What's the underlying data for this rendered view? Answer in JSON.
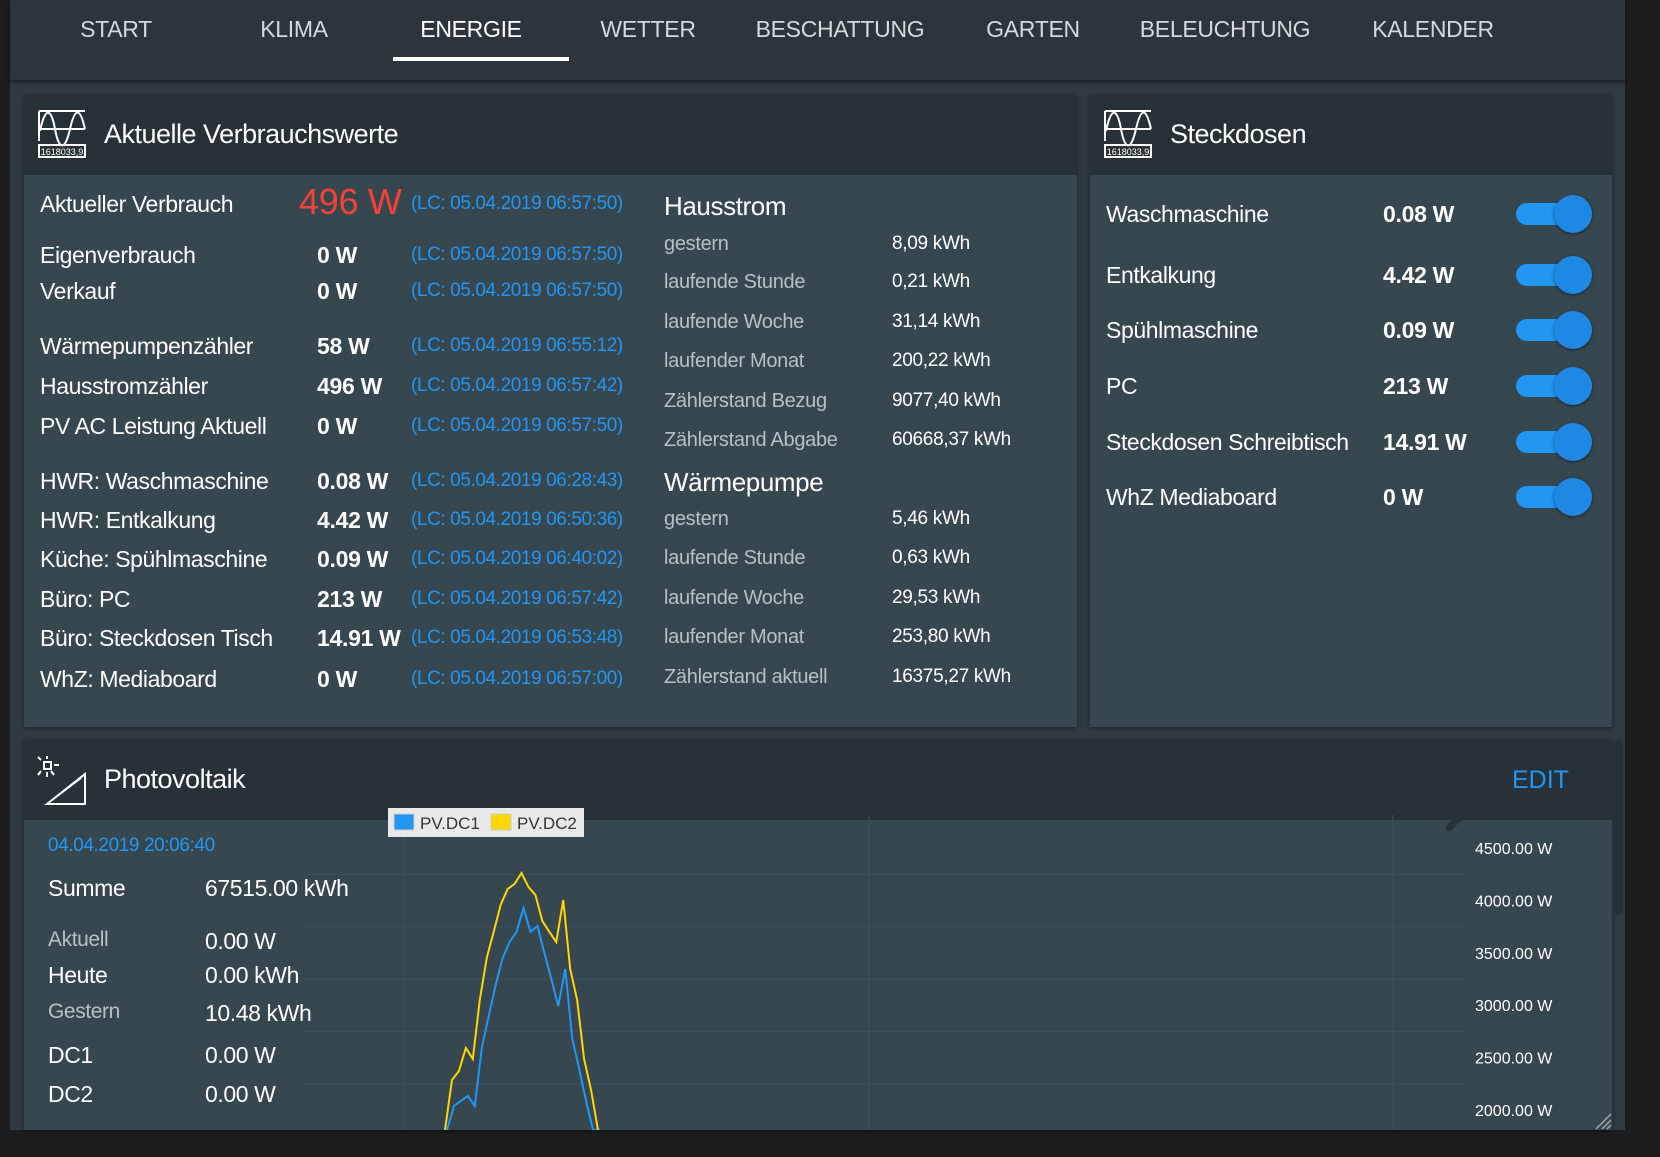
{
  "nav": {
    "tabs": [
      "START",
      "KLIMA",
      "ENERGIE",
      "WETTER",
      "BESCHATTUNG",
      "GARTEN",
      "BELEUCHTUNG",
      "KALENDER"
    ],
    "active": "ENERGIE"
  },
  "verbrauch": {
    "title": "Aktuelle Verbrauchswerte",
    "icon": "power-meter-icon",
    "rows": [
      {
        "label": "Aktueller Verbrauch",
        "value": "496 W",
        "lc": "(LC: 05.04.2019 06:57:50)"
      },
      {
        "label": "Eigenverbrauch",
        "value": "0 W",
        "lc": "(LC: 05.04.2019 06:57:50)"
      },
      {
        "label": "Verkauf",
        "value": "0 W",
        "lc": "(LC: 05.04.2019 06:57:50)"
      },
      {
        "label": "Wärmepumpenzähler",
        "value": "58 W",
        "lc": "(LC: 05.04.2019 06:55:12)"
      },
      {
        "label": "Hausstromzähler",
        "value": "496 W",
        "lc": "(LC: 05.04.2019 06:57:42)"
      },
      {
        "label": "PV AC Leistung Aktuell",
        "value": "0 W",
        "lc": "(LC: 05.04.2019 06:57:50)"
      },
      {
        "label": "HWR: Waschmaschine",
        "value": "0.08 W",
        "lc": "(LC: 05.04.2019 06:28:43)"
      },
      {
        "label": "HWR: Entkalkung",
        "value": "4.42 W",
        "lc": "(LC: 05.04.2019 06:50:36)"
      },
      {
        "label": "Küche: Spühlmaschine",
        "value": "0.09 W",
        "lc": "(LC: 05.04.2019 06:40:02)"
      },
      {
        "label": "Büro: PC",
        "value": "213 W",
        "lc": "(LC: 05.04.2019 06:57:42)"
      },
      {
        "label": "Büro: Steckdosen Tisch",
        "value": "14.91 W",
        "lc": "(LC: 05.04.2019 06:53:48)"
      },
      {
        "label": "WhZ: Mediaboard",
        "value": "0 W",
        "lc": "(LC: 05.04.2019 06:57:00)"
      }
    ],
    "hausstrom": {
      "title": "Hausstrom",
      "rows": [
        {
          "label": "gestern",
          "value": "8,09 kWh"
        },
        {
          "label": "laufende Stunde",
          "value": "0,21 kWh"
        },
        {
          "label": "laufende Woche",
          "value": "31,14 kWh"
        },
        {
          "label": "laufender Monat",
          "value": "200,22 kWh"
        },
        {
          "label": "Zählerstand Bezug",
          "value": "9077,40 kWh"
        },
        {
          "label": "Zählerstand Abgabe",
          "value": "60668,37 kWh"
        }
      ]
    },
    "waermepumpe": {
      "title": "Wärmepumpe",
      "rows": [
        {
          "label": "gestern",
          "value": "5,46 kWh"
        },
        {
          "label": "laufende Stunde",
          "value": "0,63 kWh"
        },
        {
          "label": "laufende Woche",
          "value": "29,53 kWh"
        },
        {
          "label": "laufender Monat",
          "value": "253,80 kWh"
        },
        {
          "label": "Zählerstand aktuell",
          "value": "16375,27 kWh"
        }
      ]
    }
  },
  "steckdosen": {
    "title": "Steckdosen",
    "rows": [
      {
        "label": "Waschmaschine",
        "value": "0.08 W",
        "on": true
      },
      {
        "label": "Entkalkung",
        "value": "4.42 W",
        "on": true
      },
      {
        "label": "Spühlmaschine",
        "value": "0.09 W",
        "on": true
      },
      {
        "label": "PC",
        "value": "213 W",
        "on": true
      },
      {
        "label": "Steckdosen Schreibtisch",
        "value": "14.91 W",
        "on": true
      },
      {
        "label": "WhZ Mediaboard",
        "value": "0 W",
        "on": true
      }
    ]
  },
  "pv": {
    "title": "Photovoltaik",
    "icon": "solar-panel-icon",
    "edit": "EDIT",
    "date": "04.04.2019 20:06:40",
    "rows": [
      {
        "label": "Summe",
        "value": "67515.00 kWh"
      },
      {
        "label": "Aktuell",
        "value": "0.00 W"
      },
      {
        "label": "Heute",
        "value": "0.00 kWh"
      },
      {
        "label": "Gestern",
        "value": "10.48 kWh"
      },
      {
        "label": "DC1",
        "value": "0.00 W"
      },
      {
        "label": "DC2",
        "value": "0.00 W"
      }
    ]
  },
  "colors": {
    "accent": "#2196f3",
    "alert": "#f44336",
    "dc1": "#2196f3",
    "dc2": "#ffd600"
  },
  "chart_data": {
    "type": "line",
    "yticks": [
      "4500.00 W",
      "4000.00 W",
      "3500.00 W",
      "3000.00 W",
      "2500.00 W",
      "2000.00 W"
    ],
    "ylim": [
      1809,
      4600
    ],
    "grid": true,
    "legend_position": "top-left",
    "series": [
      {
        "name": "PV.DC1",
        "color": "#2196f3",
        "values": [
          1809,
          2038,
          2086,
          2134,
          2038,
          2592,
          2897,
          3193,
          3450,
          3603,
          3700,
          3927,
          3700,
          3756,
          3498,
          3250,
          2992,
          3346,
          2687,
          2391,
          2086,
          1809,
          1809
        ]
      },
      {
        "name": "PV.DC2",
        "color": "#ffd600",
        "values": [
          1809,
          2286,
          2372,
          2592,
          2487,
          3050,
          3450,
          3700,
          3956,
          4108,
          4157,
          4261,
          4128,
          4052,
          3803,
          3700,
          3603,
          4004,
          3346,
          3050,
          2487,
          2191,
          1809
        ]
      }
    ]
  }
}
